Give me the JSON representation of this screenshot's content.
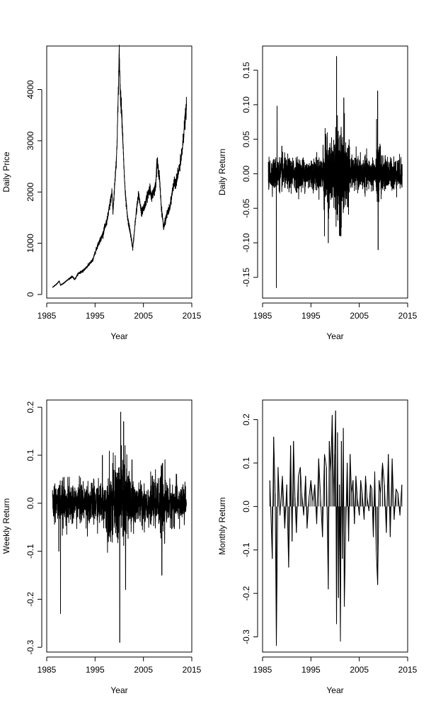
{
  "chart_data": [
    {
      "type": "line",
      "title": "",
      "xlabel": "Year",
      "ylabel": "Daily Price",
      "xlim": [
        1985,
        2015
      ],
      "ylim": [
        -70,
        4850
      ],
      "xticks": [
        1985,
        1995,
        2005,
        2015
      ],
      "yticks": [
        0,
        1000,
        2000,
        3000,
        4000
      ],
      "grid": false,
      "series": [
        {
          "x": [
            1986.2,
            1987.0,
            1987.6,
            1987.85,
            1988.5,
            1989.5,
            1990.3,
            1990.8,
            1991.5,
            1992.5,
            1993.5,
            1994.5,
            1995.5,
            1996.5,
            1997.5,
            1998.5,
            1998.7,
            1999.5,
            2000.0,
            2000.2,
            2000.3,
            2000.5,
            2001.0,
            2001.3,
            2001.7,
            2002.3,
            2002.8,
            2003.5,
            2004.0,
            2004.6,
            2005.5,
            2006.3,
            2006.6,
            2007.5,
            2007.8,
            2008.3,
            2008.7,
            2009.2,
            2009.8,
            2010.5,
            2011.2,
            2011.7,
            2012.3,
            2012.9,
            2013.5,
            2013.9
          ],
          "y": [
            140,
            200,
            260,
            180,
            220,
            300,
            350,
            290,
            410,
            460,
            560,
            670,
            950,
            1150,
            1450,
            2000,
            1600,
            2800,
            4700,
            4000,
            3800,
            3600,
            2400,
            1900,
            1500,
            1200,
            900,
            1600,
            1950,
            1600,
            1800,
            2100,
            1900,
            2100,
            2600,
            2300,
            1700,
            1300,
            1550,
            1700,
            2150,
            2200,
            2400,
            2700,
            3300,
            3650
          ]
        }
      ]
    },
    {
      "type": "line",
      "title": "",
      "xlabel": "Year",
      "ylabel": "Daily Return",
      "xlim": [
        1985,
        2015
      ],
      "ylim": [
        -0.18,
        0.185
      ],
      "xticks": [
        1985,
        1995,
        2005,
        2015
      ],
      "yticks": [
        -0.15,
        -0.1,
        -0.05,
        0.0,
        0.05,
        0.1,
        0.15
      ],
      "grid": false,
      "series": [
        {
          "x": [
            1987.85,
            1988.0,
            1989.0,
            1997.8,
            1998.6,
            2000.3,
            2001.2,
            2001.8,
            2008.8,
            2008.9
          ],
          "y": [
            -0.165,
            0.098,
            0.04,
            -0.09,
            -0.1,
            0.17,
            -0.09,
            0.11,
            0.12,
            -0.11
          ]
        }
      ]
    },
    {
      "type": "line",
      "title": "",
      "xlabel": "Year",
      "ylabel": "Weekly Return",
      "xlim": [
        1985,
        2015
      ],
      "ylim": [
        -0.31,
        0.215
      ],
      "xticks": [
        1985,
        1995,
        2005,
        2015
      ],
      "yticks": [
        -0.3,
        -0.2,
        -0.1,
        0.0,
        0.1,
        0.2
      ],
      "grid": false,
      "series": [
        {
          "x": [
            1987.5,
            1987.85,
            1996.5,
            2000.1,
            2000.3,
            2000.9,
            2001.3,
            2008.8
          ],
          "y": [
            -0.1,
            -0.23,
            0.1,
            -0.29,
            0.19,
            0.17,
            -0.18,
            -0.15
          ]
        }
      ]
    },
    {
      "type": "line",
      "title": "",
      "xlabel": "Year",
      "ylabel": "Monthly Return",
      "xlim": [
        1985,
        2015
      ],
      "ylim": [
        -0.335,
        0.245
      ],
      "xticks": [
        1985,
        1995,
        2005,
        2015
      ],
      "yticks": [
        -0.3,
        -0.2,
        -0.1,
        0.0,
        0.1,
        0.2
      ],
      "grid": false,
      "series": [
        {
          "x": [
            1986.5,
            1987.0,
            1987.3,
            1987.6,
            1987.85,
            1988.2,
            1988.6,
            1989.1,
            1989.6,
            1990.0,
            1990.4,
            1990.8,
            1991.1,
            1991.4,
            1991.7,
            1992.0,
            1992.4,
            1992.8,
            1993.1,
            1993.5,
            1993.9,
            1994.2,
            1994.6,
            1995.0,
            1995.4,
            1995.8,
            1996.2,
            1996.6,
            1997.0,
            1997.4,
            1997.8,
            1998.2,
            1998.6,
            1998.8,
            1999.1,
            1999.4,
            1999.7,
            1999.9,
            2000.1,
            2000.3,
            2000.5,
            2000.7,
            2000.9,
            2001.1,
            2001.3,
            2001.5,
            2001.7,
            2001.9,
            2002.2,
            2002.5,
            2002.8,
            2003.1,
            2003.4,
            2003.7,
            2004.0,
            2004.3,
            2004.6,
            2005.0,
            2005.3,
            2005.6,
            2006.0,
            2006.3,
            2006.6,
            2007.0,
            2007.3,
            2007.6,
            2007.9,
            2008.2,
            2008.5,
            2008.8,
            2009.1,
            2009.4,
            2009.8,
            2010.2,
            2010.6,
            2011.0,
            2011.4,
            2011.8,
            2012.2,
            2012.6,
            2013.0,
            2013.4,
            2013.8
          ],
          "y": [
            0.06,
            -0.12,
            0.16,
            0.03,
            -0.32,
            0.09,
            -0.02,
            0.07,
            -0.05,
            0.05,
            -0.14,
            0.14,
            -0.08,
            0.15,
            0.02,
            -0.06,
            0.07,
            0.09,
            0.03,
            -0.02,
            0.07,
            -0.05,
            0.02,
            0.06,
            0.01,
            0.05,
            -0.04,
            0.11,
            0.02,
            -0.07,
            0.12,
            0.09,
            -0.19,
            0.15,
            0.08,
            0.21,
            0.02,
            0.12,
            0.22,
            -0.27,
            0.17,
            -0.21,
            0.05,
            -0.31,
            0.15,
            -0.12,
            0.18,
            -0.23,
            -0.05,
            0.1,
            -0.08,
            0.12,
            0.03,
            0.06,
            -0.04,
            0.07,
            0.02,
            -0.02,
            0.06,
            0.03,
            -0.03,
            0.07,
            0.02,
            -0.01,
            0.05,
            0.04,
            -0.07,
            0.08,
            -0.1,
            -0.18,
            0.06,
            0.03,
            0.1,
            0.05,
            -0.06,
            0.12,
            -0.07,
            0.11,
            -0.03,
            0.04,
            0.03,
            -0.02,
            0.05
          ]
        }
      ]
    }
  ]
}
